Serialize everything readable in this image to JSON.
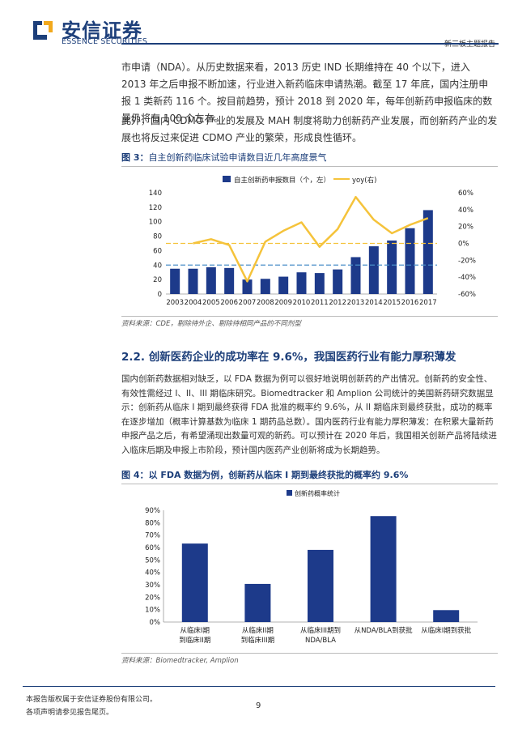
{
  "header": {
    "logo_cn": "安信证券",
    "logo_en": "ESSENCE SECURITIES",
    "report_type": "新三板主题报告"
  },
  "paragraphs": {
    "p1": "市申请（NDA）。从历史数据来看，2013 历史 IND 长期维持在 40 个以下，进入 2013 年之后申报不断加速，行业进入新药临床申请热潮。截至 17 年底，国内注册申报 1 类新药 116 个。按目前趋势，预计 2018 到 2020 年，每年创新药申报临床的数量仍将有 100 个左右。",
    "p2": "此外，国内 CDMO 产业的发展及 MAH 制度将助力创新药产业发展，而创新药产业的发展也将反过来促进 CDMO 产业的繁荣，形成良性循环。",
    "p3": "国内创新药数据相对缺乏，以 FDA 数据为例可以很好地说明创新药的产出情况。创新药的安全性、有效性需经过 I、II、III 期临床研究。Biomedtracker 和 Amplion 公司统计的美国新药研究数据显示：创新药从临床 I 期到最终获得 FDA 批准的概率约 9.6%，从 II 期临床到最终获批，成功的概率在逐步增加（概率计算基数为临床 1 期药品总数）。国内医药行业有能力厚积薄发：在积累大量新药申报产品之后，有希望涌现出数量可观的新药。可以预计在 2020 年后，我国相关创新产品将陆续进入临床后期及申报上市阶段，预计国内医药产业创新将成为长期趋势。"
  },
  "figure3": {
    "label": "图 3：",
    "caption": "自主创新药临床试验申请数目近几年高度景气",
    "source": "资料来源：CDE，剔除待外企、剔除待相同产品的不同剂型"
  },
  "section": {
    "title": "2.2. 创新医药企业的成功率在 9.6%，我国医药行业有能力厚积薄发"
  },
  "figure4": {
    "label": "图 4：",
    "caption": "以 FDA 数据为例，创新药从临床 I 期到最终获批的概率约 9.6%",
    "source": "资料来源：Biomedtracker, Amplion"
  },
  "chart_data": [
    {
      "type": "bar",
      "categories": [
        "2003",
        "2004",
        "2005",
        "2006",
        "2007",
        "2008",
        "2009",
        "2010",
        "2011",
        "2012",
        "2013",
        "2014",
        "2015",
        "2016",
        "2017"
      ],
      "series": [
        {
          "name": "自主创新药申报数目（个，左）",
          "type": "bar",
          "axis": "left",
          "color": "#1d3a8a",
          "values": [
            35,
            35,
            37,
            36,
            20,
            21,
            24,
            30,
            29,
            34,
            51,
            66,
            74,
            91,
            116
          ]
        },
        {
          "name": "yoy(右)",
          "type": "line",
          "axis": "right",
          "color": "#f5c33b",
          "values": [
            null,
            0,
            5,
            -2,
            -45,
            2,
            15,
            25,
            -4,
            17,
            55,
            28,
            12,
            22,
            30
          ]
        }
      ],
      "ylim_left": [
        0,
        140
      ],
      "yticks_left": [
        "0",
        "20",
        "40",
        "60",
        "80",
        "100",
        "120",
        "140"
      ],
      "ylim_right": [
        -60,
        60
      ],
      "yticks_right": [
        "-60%",
        "-40%",
        "-20%",
        "0%",
        "20%",
        "40%",
        "60%"
      ],
      "reference_lines": [
        {
          "axis": "left",
          "value": 40,
          "color": "#4a8fc8",
          "style": "dashed"
        },
        {
          "axis": "right",
          "value": 0,
          "color": "#f5c33b",
          "style": "dashed"
        }
      ],
      "legend": "top"
    },
    {
      "type": "bar",
      "categories": [
        "从临床I期\n到临床II期",
        "从临床II期\n到临床III期",
        "从临床III期到\nNDA/BLA",
        "从NDA/BLA到获批",
        "从临床I期到获批"
      ],
      "series": [
        {
          "name": "创新药概率统计",
          "color": "#1d3a8a",
          "values": [
            63.2,
            30.7,
            58.1,
            85.3,
            9.6
          ]
        }
      ],
      "ylim": [
        0,
        90
      ],
      "yticks": [
        "0%",
        "10%",
        "20%",
        "30%",
        "40%",
        "50%",
        "60%",
        "70%",
        "80%",
        "90%"
      ],
      "legend": "top-left"
    }
  ],
  "footer": {
    "line1": "本报告版权属于安信证券股份有限公司。",
    "line2": "各项声明请参见报告尾页。",
    "page": "9"
  }
}
